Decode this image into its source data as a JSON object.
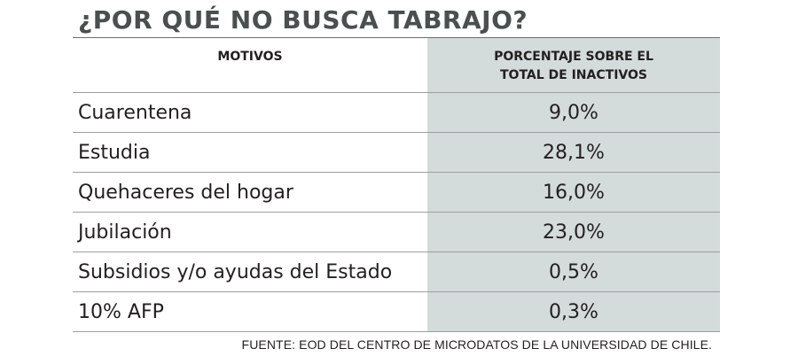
{
  "title": "¿POR QUÉ NO BUSCA TABRAJO?",
  "table": {
    "headers": {
      "motivos": "MOTIVOS",
      "porcentaje_line1": "PORCENTAJE SOBRE EL",
      "porcentaje_line2": "TOTAL DE INACTIVOS"
    },
    "rows": [
      {
        "motivo": "Cuarentena",
        "porcentaje": "9,0%"
      },
      {
        "motivo": "Estudia",
        "porcentaje": "28,1%"
      },
      {
        "motivo": "Quehaceres del hogar",
        "porcentaje": "16,0%"
      },
      {
        "motivo": "Jubilación",
        "porcentaje": "23,0%"
      },
      {
        "motivo": "Subsidios y/o ayudas del Estado",
        "porcentaje": "0,5%"
      },
      {
        "motivo": "10% AFP",
        "porcentaje": "0,3%"
      }
    ]
  },
  "source": "FUENTE: EOD DEL CENTRO DE MICRODATOS DE LA UNIVERSIDAD DE CHILE.",
  "colors": {
    "title": "#4a4f4f",
    "shaded_column": "#d4dbdb",
    "text": "#231f20"
  }
}
